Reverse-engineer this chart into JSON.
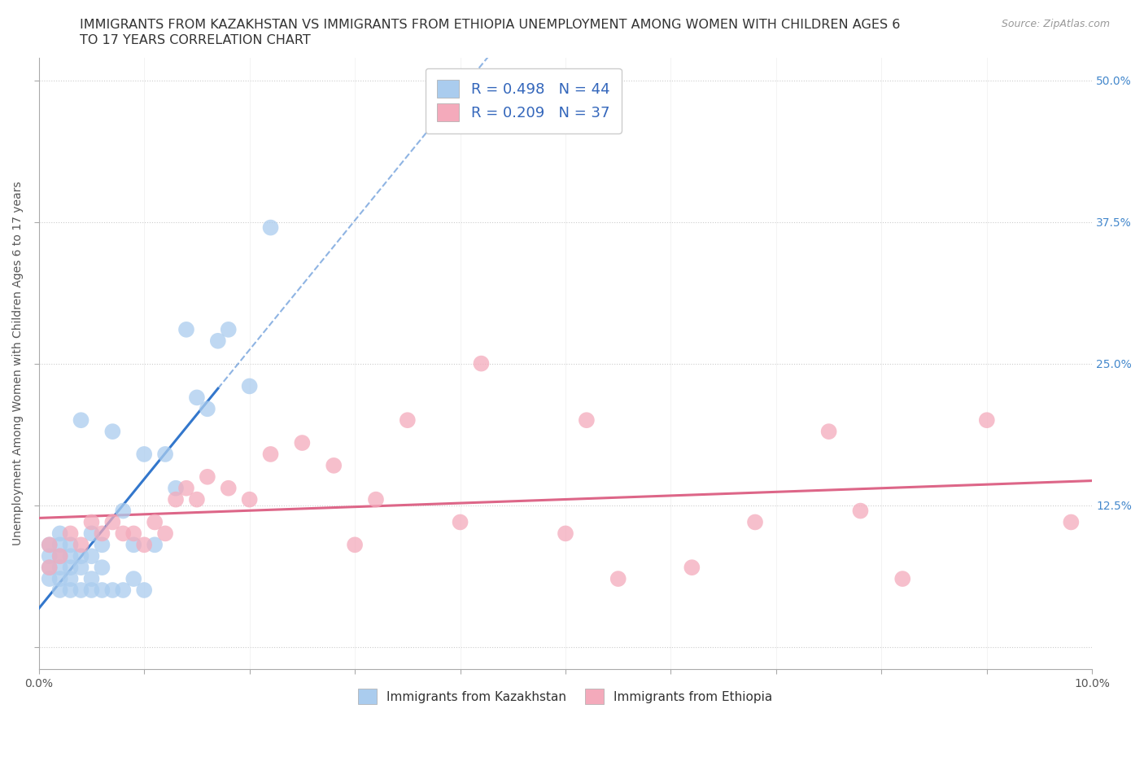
{
  "title_line1": "IMMIGRANTS FROM KAZAKHSTAN VS IMMIGRANTS FROM ETHIOPIA UNEMPLOYMENT AMONG WOMEN WITH CHILDREN AGES 6",
  "title_line2": "TO 17 YEARS CORRELATION CHART",
  "source": "Source: ZipAtlas.com",
  "ylabel": "Unemployment Among Women with Children Ages 6 to 17 years",
  "xlim": [
    0.0,
    0.1
  ],
  "ylim": [
    -0.02,
    0.52
  ],
  "ytick_positions": [
    0.0,
    0.125,
    0.25,
    0.375,
    0.5
  ],
  "ytick_labels_right": [
    "",
    "12.5%",
    "25.0%",
    "37.5%",
    "50.0%"
  ],
  "xtick_positions": [
    0.0,
    0.01,
    0.02,
    0.03,
    0.04,
    0.05,
    0.06,
    0.07,
    0.08,
    0.09,
    0.1
  ],
  "grid_color": "#cccccc",
  "kazakhstan_color": "#aaccee",
  "ethiopia_color": "#f4aabb",
  "kazakhstan_line_color": "#3377cc",
  "ethiopia_line_color": "#dd6688",
  "kazakhstan_R": 0.498,
  "kazakhstan_N": 44,
  "ethiopia_R": 0.209,
  "ethiopia_N": 37,
  "kaz_x": [
    0.001,
    0.001,
    0.001,
    0.001,
    0.002,
    0.002,
    0.002,
    0.002,
    0.002,
    0.002,
    0.003,
    0.003,
    0.003,
    0.003,
    0.003,
    0.004,
    0.004,
    0.004,
    0.004,
    0.005,
    0.005,
    0.005,
    0.005,
    0.006,
    0.006,
    0.006,
    0.007,
    0.007,
    0.008,
    0.008,
    0.009,
    0.009,
    0.01,
    0.01,
    0.011,
    0.012,
    0.013,
    0.014,
    0.015,
    0.016,
    0.017,
    0.018,
    0.02,
    0.022
  ],
  "kaz_y": [
    0.06,
    0.07,
    0.08,
    0.09,
    0.05,
    0.06,
    0.07,
    0.08,
    0.09,
    0.1,
    0.05,
    0.06,
    0.07,
    0.08,
    0.09,
    0.05,
    0.07,
    0.08,
    0.2,
    0.05,
    0.06,
    0.08,
    0.1,
    0.05,
    0.07,
    0.09,
    0.05,
    0.19,
    0.05,
    0.12,
    0.06,
    0.09,
    0.05,
    0.17,
    0.09,
    0.17,
    0.14,
    0.28,
    0.22,
    0.21,
    0.27,
    0.28,
    0.23,
    0.37
  ],
  "eth_x": [
    0.001,
    0.001,
    0.002,
    0.003,
    0.004,
    0.005,
    0.006,
    0.007,
    0.008,
    0.009,
    0.01,
    0.011,
    0.012,
    0.013,
    0.014,
    0.015,
    0.016,
    0.018,
    0.02,
    0.022,
    0.025,
    0.028,
    0.03,
    0.032,
    0.035,
    0.04,
    0.042,
    0.05,
    0.052,
    0.055,
    0.062,
    0.068,
    0.075,
    0.078,
    0.082,
    0.09,
    0.098
  ],
  "eth_y": [
    0.07,
    0.09,
    0.08,
    0.1,
    0.09,
    0.11,
    0.1,
    0.11,
    0.1,
    0.1,
    0.09,
    0.11,
    0.1,
    0.13,
    0.14,
    0.13,
    0.15,
    0.14,
    0.13,
    0.17,
    0.18,
    0.16,
    0.09,
    0.13,
    0.2,
    0.11,
    0.25,
    0.1,
    0.2,
    0.06,
    0.07,
    0.11,
    0.19,
    0.12,
    0.06,
    0.2,
    0.11
  ],
  "title_fontsize": 11.5,
  "label_fontsize": 10,
  "tick_fontsize": 10,
  "legend_fontsize": 13,
  "source_fontsize": 9
}
